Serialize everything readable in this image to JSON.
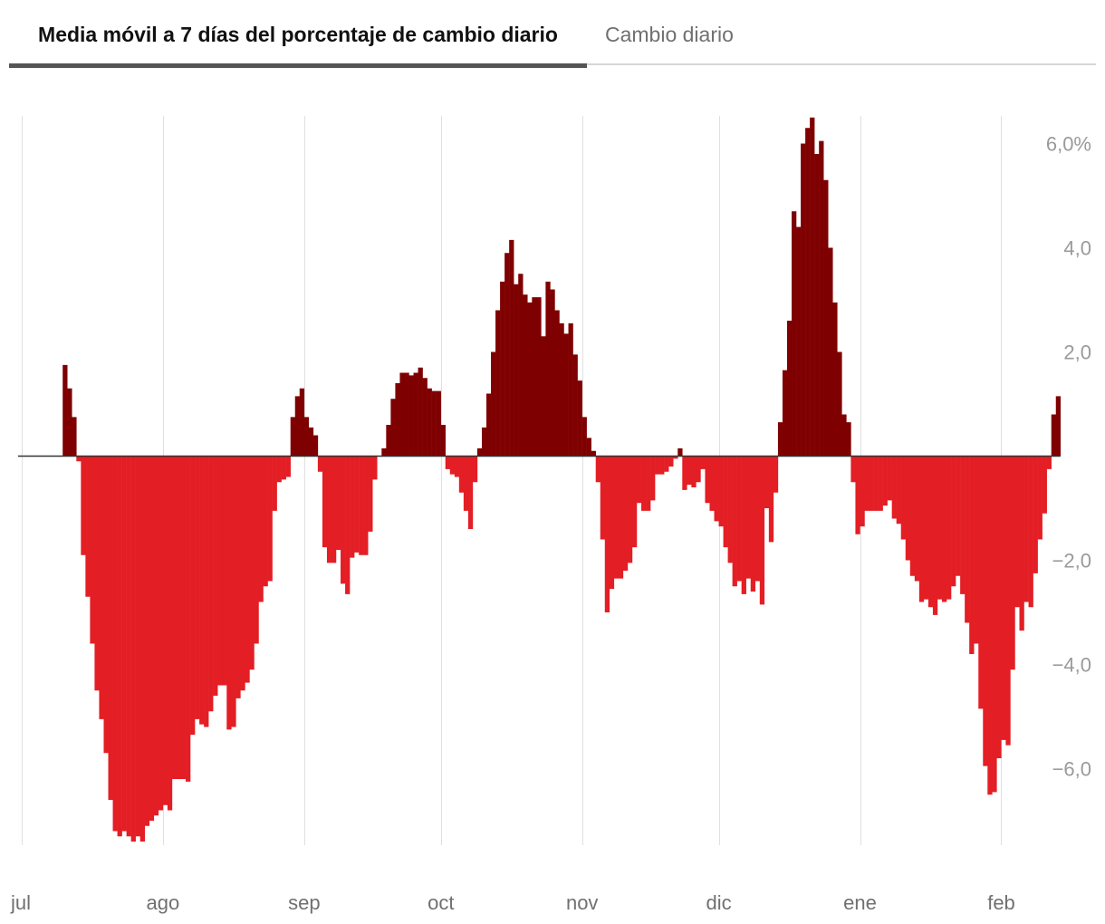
{
  "tabs": [
    {
      "label": "Media móvil a 7 días del porcentaje de cambio diario",
      "active": true
    },
    {
      "label": "Cambio diario",
      "active": false
    }
  ],
  "colors": {
    "positive": "#7f0000",
    "negative": "#e31e24",
    "grid": "#e0e0e0",
    "baseline": "#333333"
  },
  "chart_data": {
    "type": "bar",
    "title": "Media móvil a 7 días del porcentaje de cambio diario",
    "xlabel": "",
    "ylabel": "",
    "ylim": [
      -7.5,
      6.5
    ],
    "y_ticks": [
      {
        "value": 6,
        "label": "6,0%"
      },
      {
        "value": 4,
        "label": "4,0"
      },
      {
        "value": 2,
        "label": "2,0"
      },
      {
        "value": -2,
        "label": "−2,0"
      },
      {
        "value": -4,
        "label": "−4,0"
      },
      {
        "value": -6,
        "label": "−6,0"
      }
    ],
    "x_ticks": [
      {
        "day": 0,
        "label": "jul"
      },
      {
        "day": 31,
        "label": "ago"
      },
      {
        "day": 62,
        "label": "sep"
      },
      {
        "day": 92,
        "label": "oct"
      },
      {
        "day": 123,
        "label": "nov"
      },
      {
        "day": 153,
        "label": "dic"
      },
      {
        "day": 184,
        "label": "ene"
      },
      {
        "day": 215,
        "label": "feb"
      }
    ],
    "values": [
      0,
      0,
      0,
      0,
      0,
      0,
      0,
      1.75,
      1.3,
      0.75,
      -0.1,
      -1.9,
      -2.7,
      -3.6,
      -4.5,
      -5.05,
      -5.7,
      -6.6,
      -7.2,
      -7.3,
      -7.2,
      -7.3,
      -7.4,
      -7.3,
      -7.4,
      -7.1,
      -7.0,
      -6.9,
      -6.8,
      -6.7,
      -6.8,
      -6.2,
      -6.2,
      -6.2,
      -6.25,
      -5.35,
      -5.05,
      -5.15,
      -5.2,
      -4.9,
      -4.6,
      -4.4,
      -4.4,
      -5.25,
      -5.2,
      -4.65,
      -4.5,
      -4.35,
      -4.1,
      -3.6,
      -2.8,
      -2.5,
      -2.4,
      -1.05,
      -0.5,
      -0.45,
      -0.4,
      0.75,
      1.15,
      1.3,
      0.75,
      0.55,
      0.4,
      -0.3,
      -1.75,
      -2.05,
      -2.05,
      -1.8,
      -2.45,
      -2.65,
      -1.95,
      -1.85,
      -1.9,
      -1.9,
      -1.45,
      -0.45,
      0.0,
      0.15,
      0.6,
      1.1,
      1.4,
      1.6,
      1.6,
      1.55,
      1.6,
      1.7,
      1.5,
      1.3,
      1.25,
      1.25,
      0.6,
      -0.25,
      -0.35,
      -0.4,
      -0.7,
      -1.05,
      -1.4,
      -0.5,
      0.15,
      0.55,
      1.2,
      2.0,
      2.8,
      3.35,
      3.9,
      4.15,
      3.3,
      3.5,
      3.1,
      2.95,
      3.05,
      3.05,
      2.3,
      3.35,
      3.2,
      2.8,
      2.55,
      2.35,
      2.55,
      1.95,
      1.45,
      0.75,
      0.35,
      0.1,
      -0.5,
      -1.6,
      -3.0,
      -2.55,
      -2.35,
      -2.35,
      -2.2,
      -2.05,
      -1.75,
      -0.9,
      -1.05,
      -1.05,
      -0.85,
      -0.35,
      -0.35,
      -0.3,
      -0.2,
      -0.05,
      0.15,
      -0.65,
      -0.55,
      -0.6,
      -0.5,
      -0.25,
      -0.9,
      -1.05,
      -1.25,
      -1.35,
      -1.75,
      -2.05,
      -2.5,
      -2.4,
      -2.65,
      -2.35,
      -2.6,
      -2.4,
      -2.85,
      -1.0,
      -1.65,
      -0.7,
      0.65,
      1.65,
      2.6,
      4.7,
      4.4,
      6.0,
      6.3,
      6.5,
      5.8,
      6.05,
      5.3,
      4.0,
      2.95,
      2.0,
      0.8,
      0.65,
      -0.5,
      -1.5,
      -1.35,
      -1.05,
      -1.05,
      -1.05,
      -1.05,
      -0.95,
      -0.85,
      -1.2,
      -1.3,
      -1.6,
      -2.0,
      -2.3,
      -2.4,
      -2.8,
      -2.75,
      -2.9,
      -3.05,
      -2.75,
      -2.8,
      -2.75,
      -2.5,
      -2.3,
      -2.65,
      -3.2,
      -3.8,
      -3.6,
      -4.85,
      -5.95,
      -6.5,
      -6.45,
      -5.8,
      -5.45,
      -5.55,
      -4.1,
      -2.9,
      -3.35,
      -2.8,
      -2.9,
      -2.25,
      -1.6,
      -1.1,
      -0.25,
      0.8,
      1.15
    ]
  }
}
